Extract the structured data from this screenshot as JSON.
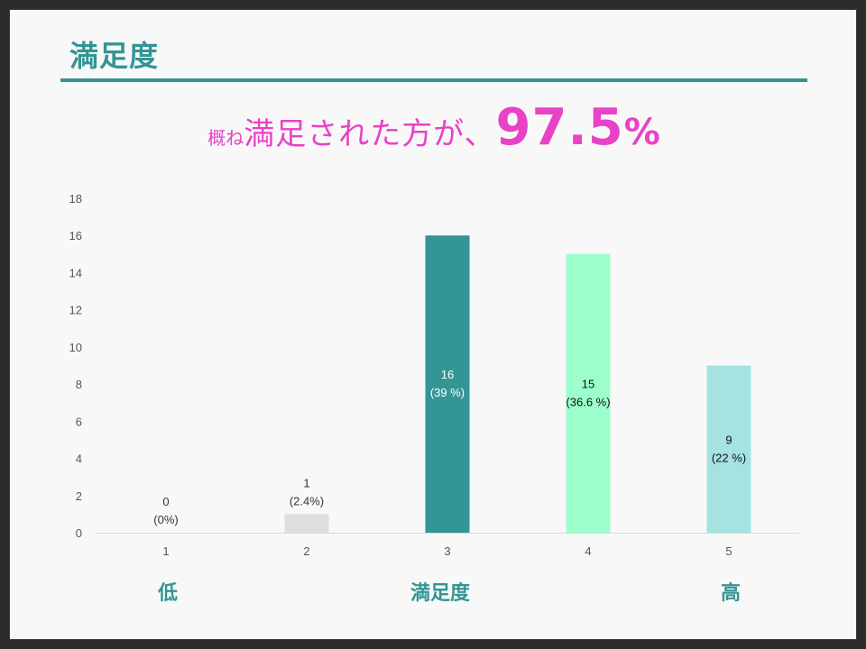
{
  "slide": {
    "title": "満足度",
    "headline_prefix": "概ね",
    "headline_main": "満足された方が、",
    "headline_value": "97.5",
    "headline_unit": "%"
  },
  "footer": {
    "low": "低",
    "middle": "満足度",
    "high": "高"
  },
  "chart_data": {
    "type": "bar",
    "categories": [
      "1",
      "2",
      "3",
      "4",
      "5"
    ],
    "values": [
      0,
      1,
      16,
      15,
      9
    ],
    "data_labels": [
      [
        "0",
        "(0%)"
      ],
      [
        "1",
        "(2.4%)"
      ],
      [
        "16",
        "(39 %)"
      ],
      [
        "15",
        "(36.6 %)"
      ],
      [
        "9",
        "(22 %)"
      ]
    ],
    "bar_colors": [
      "#dedede",
      "#dedede",
      "#339594",
      "#9cffcb",
      "#a4e3e1"
    ],
    "label_colors": [
      "#333333",
      "#333333",
      "#ffffff",
      "#111111",
      "#111111"
    ],
    "ylim": [
      0,
      18
    ],
    "yticks": [
      0,
      2,
      4,
      6,
      8,
      10,
      12,
      14,
      16,
      18
    ],
    "grid": false,
    "legend": "none"
  }
}
